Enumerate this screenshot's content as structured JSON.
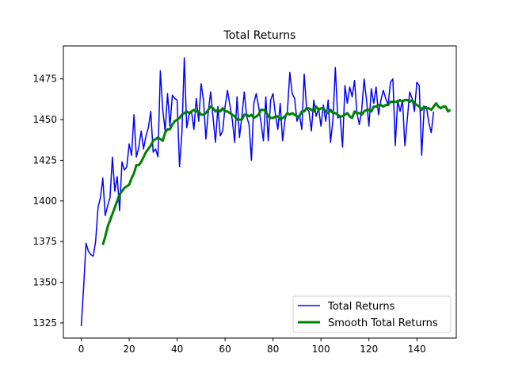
{
  "chart_data": {
    "type": "line",
    "title": "Total Returns",
    "xlabel": "",
    "ylabel": "",
    "xlim": [
      -7.45,
      156.45
    ],
    "ylim": [
      1315.7,
      1495.3
    ],
    "xticks": [
      0,
      20,
      40,
      60,
      80,
      100,
      120,
      140
    ],
    "yticks": [
      1325,
      1350,
      1375,
      1400,
      1425,
      1450,
      1475
    ],
    "grid": false,
    "legend_position": "lower-right",
    "series": [
      {
        "name": "Total Returns",
        "color": "#0000ff",
        "linewidth": 1.5,
        "x_start": 0,
        "values": [
          1323,
          1347,
          1374,
          1369,
          1367,
          1366,
          1375,
          1396,
          1402,
          1414,
          1391,
          1397,
          1402,
          1427,
          1406,
          1415,
          1394,
          1424,
          1419,
          1421,
          1435,
          1428,
          1453,
          1427,
          1433,
          1443,
          1432,
          1440,
          1445,
          1455,
          1430,
          1432,
          1427,
          1480,
          1456,
          1443,
          1466,
          1446,
          1465,
          1463,
          1462,
          1421,
          1442,
          1488,
          1445,
          1453,
          1455,
          1444,
          1463,
          1449,
          1472,
          1462,
          1438,
          1455,
          1467,
          1451,
          1436,
          1458,
          1440,
          1443,
          1458,
          1468,
          1459,
          1450,
          1436,
          1464,
          1439,
          1452,
          1467,
          1452,
          1447,
          1425,
          1460,
          1466,
          1458,
          1448,
          1437,
          1464,
          1437,
          1462,
          1466,
          1453,
          1444,
          1460,
          1437,
          1450,
          1455,
          1479,
          1466,
          1463,
          1449,
          1453,
          1444,
          1478,
          1457,
          1455,
          1443,
          1462,
          1452,
          1457,
          1446,
          1459,
          1449,
          1462,
          1436,
          1450,
          1482,
          1451,
          1452,
          1433,
          1471,
          1460,
          1470,
          1464,
          1474,
          1454,
          1447,
          1456,
          1475,
          1462,
          1446,
          1469,
          1460,
          1470,
          1453,
          1462,
          1468,
          1463,
          1459,
          1473,
          1475,
          1434,
          1462,
          1455,
          1462,
          1434,
          1450,
          1467,
          1463,
          1455,
          1473,
          1471,
          1428,
          1456,
          1458,
          1448,
          1442,
          1455
        ]
      },
      {
        "name": "Smooth Total Returns",
        "color": "#008000",
        "linewidth": 3,
        "x_start": 9,
        "values": [
          1373,
          1378,
          1384,
          1388,
          1392,
          1396,
          1400,
          1404,
          1406,
          1408,
          1409,
          1410,
          1414,
          1417,
          1422,
          1422,
          1424,
          1427,
          1430,
          1432,
          1434,
          1437,
          1438,
          1439,
          1438,
          1437,
          1442,
          1444,
          1444,
          1447,
          1449,
          1450,
          1451,
          1453,
          1454,
          1455,
          1454,
          1455,
          1456,
          1455,
          1455,
          1453,
          1453,
          1454,
          1456,
          1458,
          1457,
          1455,
          1456,
          1455,
          1457,
          1455,
          1455,
          1454,
          1453,
          1452,
          1450,
          1450,
          1450,
          1453,
          1453,
          1452,
          1453,
          1451,
          1452,
          1453,
          1456,
          1456,
          1455,
          1452,
          1451,
          1451,
          1452,
          1452,
          1450,
          1451,
          1452,
          1454,
          1453,
          1454,
          1453,
          1452,
          1452,
          1455,
          1455,
          1457,
          1457,
          1456,
          1455,
          1458,
          1456,
          1457,
          1457,
          1455,
          1454,
          1456,
          1454,
          1454,
          1453,
          1452,
          1452,
          1453,
          1454,
          1452,
          1451,
          1455,
          1454,
          1454,
          1453,
          1455,
          1456,
          1456,
          1455,
          1458,
          1458,
          1459,
          1459,
          1458,
          1459,
          1459,
          1461,
          1461,
          1461,
          1461,
          1462,
          1461,
          1462,
          1462,
          1461,
          1462,
          1460,
          1459,
          1458,
          1456,
          1458,
          1457,
          1457,
          1456,
          1458,
          1460,
          1458,
          1457,
          1458,
          1458,
          1455,
          1456
        ]
      }
    ]
  }
}
